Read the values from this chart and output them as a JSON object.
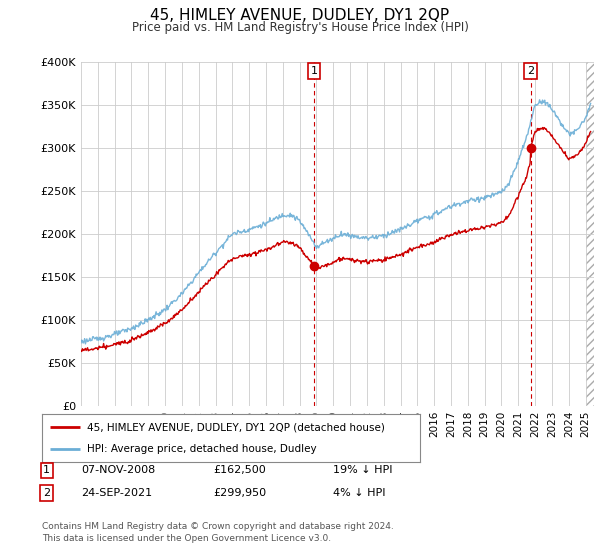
{
  "title": "45, HIMLEY AVENUE, DUDLEY, DY1 2QP",
  "subtitle": "Price paid vs. HM Land Registry's House Price Index (HPI)",
  "background_color": "#ffffff",
  "plot_bg_color": "#ffffff",
  "grid_color": "#cccccc",
  "ylim": [
    0,
    400000
  ],
  "yticks": [
    0,
    50000,
    100000,
    150000,
    200000,
    250000,
    300000,
    350000,
    400000
  ],
  "xlim_start": 1995,
  "xlim_end": 2025.5,
  "sale1_date": 2008.85,
  "sale1_price": 162500,
  "sale2_date": 2021.73,
  "sale2_price": 299950,
  "legend_entry1": "45, HIMLEY AVENUE, DUDLEY, DY1 2QP (detached house)",
  "legend_entry2": "HPI: Average price, detached house, Dudley",
  "footer": "Contains HM Land Registry data © Crown copyright and database right 2024.\nThis data is licensed under the Open Government Licence v3.0.",
  "hpi_color": "#6baed6",
  "price_color": "#cc0000",
  "annotation_box_color": "#cc0000",
  "sale1_date_str": "07-NOV-2008",
  "sale1_price_str": "£162,500",
  "sale1_pct_str": "19% ↓ HPI",
  "sale2_date_str": "24-SEP-2021",
  "sale2_price_str": "£299,950",
  "sale2_pct_str": "4% ↓ HPI"
}
